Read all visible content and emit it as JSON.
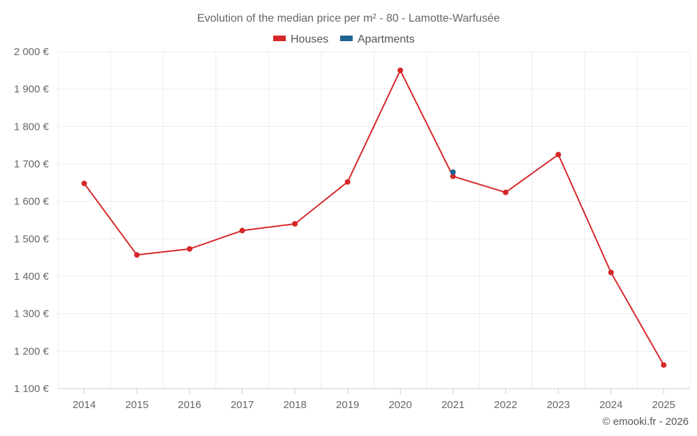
{
  "chart_data": {
    "type": "line",
    "title": "Evolution of the median price per m² - 80 - Lamotte-Warfusée",
    "categories": [
      "2014",
      "2015",
      "2016",
      "2017",
      "2018",
      "2019",
      "2020",
      "2021",
      "2022",
      "2023",
      "2024",
      "2025"
    ],
    "series": [
      {
        "name": "Houses",
        "color": "#d62728",
        "values": [
          1648,
          1457,
          1473,
          1522,
          1540,
          1652,
          1950,
          1667,
          1624,
          1725,
          1410,
          1163
        ]
      },
      {
        "name": "Apartments",
        "color": "#1f6391",
        "values": [
          null,
          null,
          null,
          null,
          null,
          null,
          null,
          1678,
          null,
          null,
          null,
          null
        ]
      }
    ],
    "y_ticks": [
      {
        "value": 1100,
        "label": "1 100 €"
      },
      {
        "value": 1200,
        "label": "1 200 €"
      },
      {
        "value": 1300,
        "label": "1 300 €"
      },
      {
        "value": 1400,
        "label": "1 400 €"
      },
      {
        "value": 1500,
        "label": "1 500 €"
      },
      {
        "value": 1600,
        "label": "1 600 €"
      },
      {
        "value": 1700,
        "label": "1 700 €"
      },
      {
        "value": 1800,
        "label": "1 800 €"
      },
      {
        "value": 1900,
        "label": "1 900 €"
      },
      {
        "value": 2000,
        "label": "2 000 €"
      }
    ],
    "ylim": [
      1100,
      2000
    ],
    "xlabel": "",
    "ylabel": "",
    "legend_position": "top-center",
    "grid": true
  },
  "credit": "© emooki.fr - 2026"
}
